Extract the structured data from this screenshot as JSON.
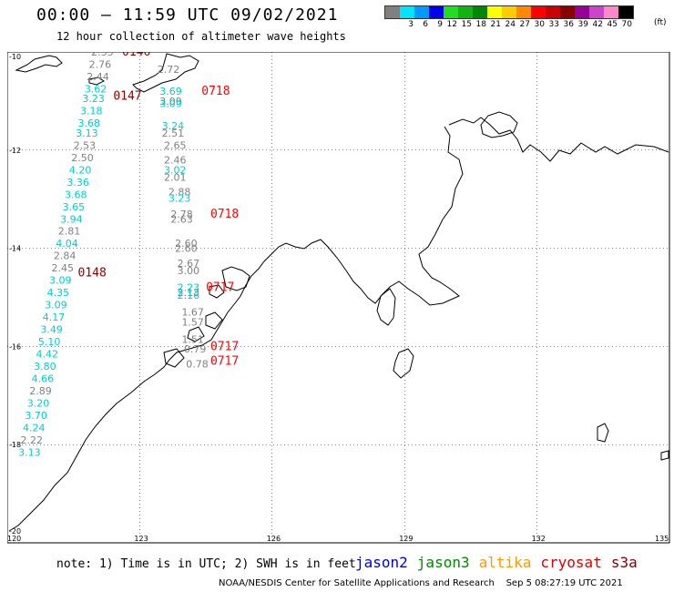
{
  "header": {
    "title": "00:00 – 11:59 UTC 09/02/2021",
    "subtitle": "12 hour collection of altimeter wave heights"
  },
  "legend": {
    "unit": "(ft)",
    "colors": [
      "#808080",
      "#00e5ff",
      "#0099ff",
      "#0000ee",
      "#22dd22",
      "#11b411",
      "#008800",
      "#ffff00",
      "#ffcc00",
      "#ff8800",
      "#ff0000",
      "#cc0000",
      "#880000",
      "#990099",
      "#cc44cc",
      "#ff88cc",
      "#000000"
    ],
    "labels": [
      "3",
      "6",
      "9",
      "12",
      "15",
      "18",
      "21",
      "24",
      "27",
      "30",
      "33",
      "36",
      "39",
      "42",
      "45",
      "70"
    ]
  },
  "map": {
    "lon_ticks": [
      "120",
      "123",
      "126",
      "129",
      "132",
      "135"
    ],
    "lat_ticks": [
      "-10",
      "-12",
      "-14",
      "-16",
      "-18",
      "-20"
    ],
    "passes": [
      {
        "time": "0146",
        "color": "#880000",
        "lon": 122.6,
        "lat": -10.0
      },
      {
        "time": "0147",
        "color": "#880000",
        "lon": 122.4,
        "lat": -10.9
      },
      {
        "time": "0148",
        "color": "#880000",
        "lon": 121.6,
        "lat": -14.5
      },
      {
        "time": "0718",
        "color": "#ff0000",
        "lon": 124.4,
        "lat": -10.8
      },
      {
        "time": "0718",
        "color": "#ff0000",
        "lon": 124.6,
        "lat": -13.3
      },
      {
        "time": "0717",
        "color": "#ff0000",
        "lon": 124.5,
        "lat": -14.8
      },
      {
        "time": "0717",
        "color": "#ff0000",
        "lon": 124.6,
        "lat": -16.0
      },
      {
        "time": "0717",
        "color": "#ff0000",
        "lon": 124.6,
        "lat": -16.3
      }
    ],
    "observations": [
      {
        "v": "2.55",
        "c": "#808080",
        "lon": 121.9,
        "lat": -10.0
      },
      {
        "v": "2.76",
        "c": "#808080",
        "lon": 121.85,
        "lat": -10.25
      },
      {
        "v": "2.44",
        "c": "#808080",
        "lon": 121.8,
        "lat": -10.5
      },
      {
        "v": "3.62",
        "c": "#00cccc",
        "lon": 121.75,
        "lat": -10.75
      },
      {
        "v": "3.23",
        "c": "#00cccc",
        "lon": 121.7,
        "lat": -10.95
      },
      {
        "v": "3.18",
        "c": "#00cccc",
        "lon": 121.65,
        "lat": -11.2
      },
      {
        "v": "3.68",
        "c": "#00cccc",
        "lon": 121.6,
        "lat": -11.45
      },
      {
        "v": "3.13",
        "c": "#00cccc",
        "lon": 121.55,
        "lat": -11.65
      },
      {
        "v": "2.53",
        "c": "#808080",
        "lon": 121.5,
        "lat": -11.9
      },
      {
        "v": "2.50",
        "c": "#808080",
        "lon": 121.45,
        "lat": -12.15
      },
      {
        "v": "4.20",
        "c": "#00cccc",
        "lon": 121.4,
        "lat": -12.4
      },
      {
        "v": "3.36",
        "c": "#00cccc",
        "lon": 121.35,
        "lat": -12.65
      },
      {
        "v": "3.68",
        "c": "#00cccc",
        "lon": 121.3,
        "lat": -12.9
      },
      {
        "v": "3.65",
        "c": "#00cccc",
        "lon": 121.25,
        "lat": -13.15
      },
      {
        "v": "3.94",
        "c": "#00cccc",
        "lon": 121.2,
        "lat": -13.4
      },
      {
        "v": "2.81",
        "c": "#808080",
        "lon": 121.15,
        "lat": -13.65
      },
      {
        "v": "4.04",
        "c": "#00cccc",
        "lon": 121.1,
        "lat": -13.9
      },
      {
        "v": "2.84",
        "c": "#808080",
        "lon": 121.05,
        "lat": -14.15
      },
      {
        "v": "2.45",
        "c": "#808080",
        "lon": 121.0,
        "lat": -14.4
      },
      {
        "v": "3.09",
        "c": "#00cccc",
        "lon": 120.95,
        "lat": -14.65
      },
      {
        "v": "4.35",
        "c": "#00cccc",
        "lon": 120.9,
        "lat": -14.9
      },
      {
        "v": "3.09",
        "c": "#00cccc",
        "lon": 120.85,
        "lat": -15.15
      },
      {
        "v": "4.17",
        "c": "#00cccc",
        "lon": 120.8,
        "lat": -15.4
      },
      {
        "v": "3.49",
        "c": "#00cccc",
        "lon": 120.75,
        "lat": -15.65
      },
      {
        "v": "5.10",
        "c": "#00cccc",
        "lon": 120.7,
        "lat": -15.9
      },
      {
        "v": "4.42",
        "c": "#00cccc",
        "lon": 120.65,
        "lat": -16.15
      },
      {
        "v": "3.80",
        "c": "#00cccc",
        "lon": 120.6,
        "lat": -16.4
      },
      {
        "v": "4.66",
        "c": "#00cccc",
        "lon": 120.55,
        "lat": -16.65
      },
      {
        "v": "2.89",
        "c": "#808080",
        "lon": 120.5,
        "lat": -16.9
      },
      {
        "v": "3.20",
        "c": "#00cccc",
        "lon": 120.45,
        "lat": -17.15
      },
      {
        "v": "3.70",
        "c": "#00cccc",
        "lon": 120.4,
        "lat": -17.4
      },
      {
        "v": "4.24",
        "c": "#00cccc",
        "lon": 120.35,
        "lat": -17.65
      },
      {
        "v": "2.22",
        "c": "#808080",
        "lon": 120.3,
        "lat": -17.9
      },
      {
        "v": "3.13",
        "c": "#00cccc",
        "lon": 120.25,
        "lat": -18.15
      },
      {
        "v": "2.72",
        "c": "#808080",
        "lon": 123.4,
        "lat": -10.35
      },
      {
        "v": "3.69",
        "c": "#00cccc",
        "lon": 123.45,
        "lat": -10.8
      },
      {
        "v": "3.09",
        "c": "#808080",
        "lon": 123.45,
        "lat": -11.0
      },
      {
        "v": "3.09",
        "c": "#00cccc",
        "lon": 123.45,
        "lat": -11.05
      },
      {
        "v": "3.24",
        "c": "#00cccc",
        "lon": 123.5,
        "lat": -11.5
      },
      {
        "v": "2.51",
        "c": "#808080",
        "lon": 123.5,
        "lat": -11.65
      },
      {
        "v": "2.65",
        "c": "#808080",
        "lon": 123.55,
        "lat": -11.9
      },
      {
        "v": "2.46",
        "c": "#808080",
        "lon": 123.55,
        "lat": -12.2
      },
      {
        "v": "3.02",
        "c": "#00cccc",
        "lon": 123.55,
        "lat": -12.4
      },
      {
        "v": "2.01",
        "c": "#808080",
        "lon": 123.55,
        "lat": -12.55
      },
      {
        "v": "2.88",
        "c": "#808080",
        "lon": 123.65,
        "lat": -12.85
      },
      {
        "v": "3.23",
        "c": "#00cccc",
        "lon": 123.65,
        "lat": -12.98
      },
      {
        "v": "2.78",
        "c": "#808080",
        "lon": 123.7,
        "lat": -13.3
      },
      {
        "v": "2.63",
        "c": "#808080",
        "lon": 123.7,
        "lat": -13.4
      },
      {
        "v": "2.60",
        "c": "#808080",
        "lon": 123.8,
        "lat": -13.9
      },
      {
        "v": "2.60",
        "c": "#808080",
        "lon": 123.8,
        "lat": -14.0
      },
      {
        "v": "2.67",
        "c": "#808080",
        "lon": 123.85,
        "lat": -14.3
      },
      {
        "v": "3.00",
        "c": "#808080",
        "lon": 123.85,
        "lat": -14.45
      },
      {
        "v": "2.23",
        "c": "#00cccc",
        "lon": 123.85,
        "lat": -14.8
      },
      {
        "v": "2.13",
        "c": "#808080",
        "lon": 123.85,
        "lat": -14.9
      },
      {
        "v": "2.16",
        "c": "#00cccc",
        "lon": 123.85,
        "lat": -14.95
      },
      {
        "v": "1.67",
        "c": "#808080",
        "lon": 123.95,
        "lat": -15.3
      },
      {
        "v": "1.57",
        "c": "#808080",
        "lon": 123.95,
        "lat": -15.5
      },
      {
        "v": "1.51",
        "c": "#808080",
        "lon": 123.95,
        "lat": -15.85
      },
      {
        "v": "0.79",
        "c": "#808080",
        "lon": 124.0,
        "lat": -16.05
      },
      {
        "v": "0.78",
        "c": "#808080",
        "lon": 124.05,
        "lat": -16.35
      }
    ]
  },
  "note": "note: 1) Time is in UTC; 2) SWH is in feet",
  "satellites": [
    {
      "name": "jason2",
      "color": "#0000dd"
    },
    {
      "name": "jason3",
      "color": "#008800"
    },
    {
      "name": "altika",
      "color": "#ff9900"
    },
    {
      "name": "cryosat",
      "color": "#dd0000"
    },
    {
      "name": "s3a",
      "color": "#880000"
    }
  ],
  "footer": {
    "credit": "NOAA/NESDIS Center for Satellite Applications and Research",
    "timestamp": "Sep  5 08:27:19 UTC 2021"
  }
}
